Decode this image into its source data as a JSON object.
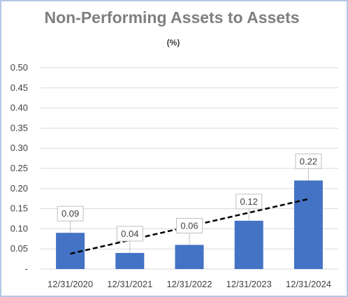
{
  "chart_data": {
    "type": "bar",
    "title": "Non-Performing Assets to Assets",
    "subtitle": "(%)",
    "categories": [
      "12/31/2020",
      "12/31/2021",
      "12/31/2022",
      "12/31/2023",
      "12/31/2024"
    ],
    "values": [
      0.09,
      0.04,
      0.06,
      0.12,
      0.22
    ],
    "data_labels": [
      "0.09",
      "0.04",
      "0.06",
      "0.12",
      "0.22"
    ],
    "ylim": [
      0,
      0.5
    ],
    "y_ticks": [
      0,
      0.05,
      0.1,
      0.15,
      0.2,
      0.25,
      0.3,
      0.35,
      0.4,
      0.45,
      0.5
    ],
    "y_tick_labels": [
      "-",
      "0.05",
      "0.10",
      "0.15",
      "0.20",
      "0.25",
      "0.30",
      "0.35",
      "0.40",
      "0.45",
      "0.50"
    ],
    "grid": true,
    "trendline": "linear",
    "colors": {
      "bar": "#4472c4",
      "grid": "#d9d9d9",
      "trendline": "#000000",
      "title": "#7f7f7f",
      "label_border": "#bfbfbf"
    }
  }
}
